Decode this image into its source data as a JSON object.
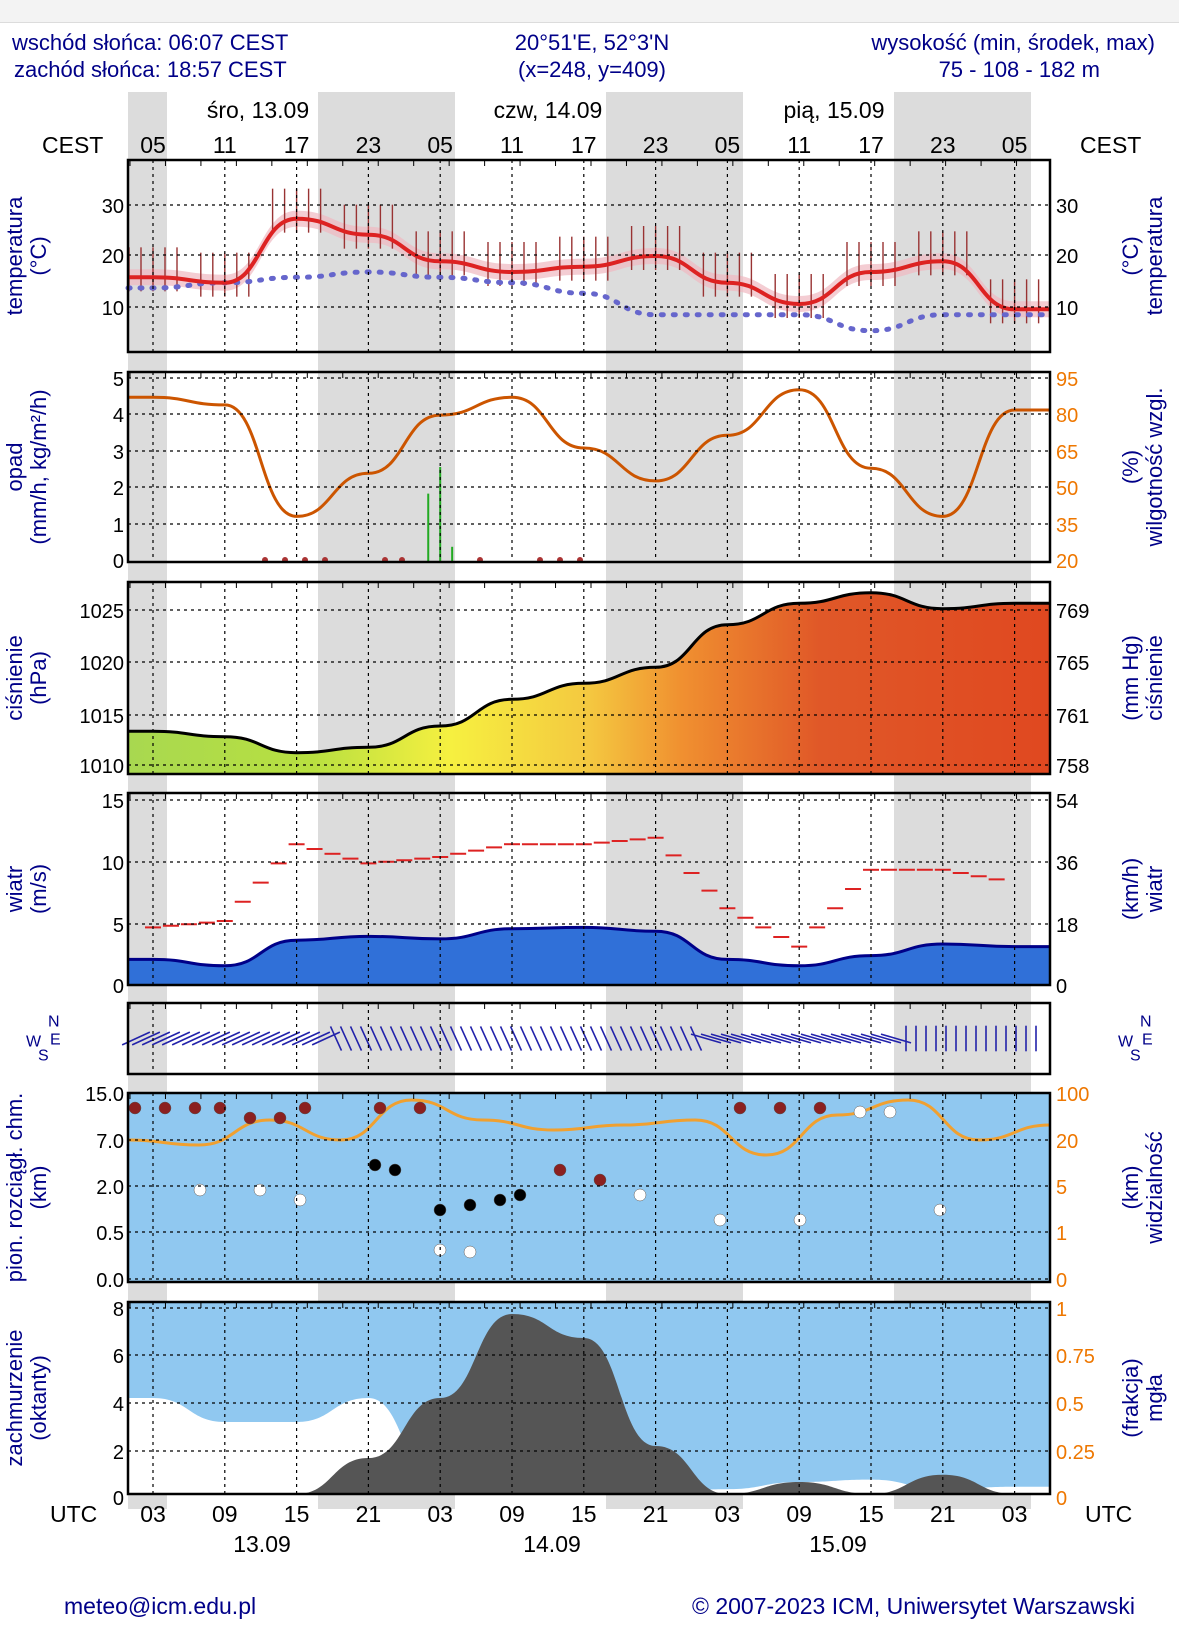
{
  "header": {
    "sunrise": "wschód słońca: 06:07 CEST",
    "sunset": "zachód słońca: 18:57 CEST",
    "coords": "20°51'E, 52°3'N",
    "grid": "(x=248, y=409)",
    "height_label": "wysokość (min, środek, max)",
    "height_values": "75 - 108 - 182 m"
  },
  "time_axis": {
    "top_label": "CEST",
    "top_label_right": "CEST",
    "bottom_label": "UTC",
    "bottom_label_right": "UTC",
    "days_top": [
      "śro, 13.09",
      "czw, 14.09",
      "pią, 15.09"
    ],
    "days_bottom": [
      "13.09",
      "14.09",
      "15.09"
    ],
    "cest_ticks": [
      "05",
      "11",
      "17",
      "23",
      "05",
      "11",
      "17",
      "23",
      "05",
      "11",
      "17",
      "23",
      "05"
    ],
    "utc_ticks": [
      "03",
      "09",
      "15",
      "21",
      "03",
      "09",
      "15",
      "21",
      "03",
      "09",
      "15",
      "21",
      "03"
    ]
  },
  "panels": {
    "temperature": {
      "left_label_1": "temperatura",
      "left_label_2": "(°C)",
      "right_label_1": "(°C)",
      "right_label_2": "temperatura",
      "ticks": [
        "30",
        "20",
        "10"
      ]
    },
    "precip": {
      "left_label_1": "opad",
      "left_label_2": "(mm/h, kg/m²/h)",
      "right_label_1": "(%)",
      "right_label_2": "wilgotność wzgl.",
      "ticks_left": [
        "5",
        "4",
        "3",
        "2",
        "1",
        "0"
      ],
      "ticks_right": [
        "95",
        "80",
        "65",
        "50",
        "35",
        "20"
      ]
    },
    "pressure": {
      "left_label_1": "ciśnienie",
      "left_label_2": "(hPa)",
      "right_label_1": "(mm Hg)",
      "right_label_2": "ciśnienie",
      "ticks_left": [
        "1025",
        "1020",
        "1015",
        "1010"
      ],
      "ticks_right": [
        "769",
        "765",
        "761",
        "758"
      ]
    },
    "wind": {
      "left_label_1": "wiatr",
      "left_label_2": "(m/s)",
      "right_label_1": "(km/h)",
      "right_label_2": "wiatr",
      "ticks_left": [
        "15",
        "10",
        "5",
        "0"
      ],
      "ticks_right": [
        "54",
        "36",
        "18",
        "0"
      ]
    },
    "winddir": {
      "compass_n": "N",
      "compass_s": "S",
      "compass_e": "E",
      "compass_w": "W"
    },
    "cloudbase": {
      "left_label_1": "pion. rozciągł. chm.",
      "left_label_2": "(km)",
      "right_label_1": "(km)",
      "right_label_2": "widzialność",
      "ticks_left": [
        "15.0",
        "7.0",
        "2.0",
        "0.5",
        "0.0"
      ],
      "ticks_right": [
        "100",
        "20",
        "5",
        "1",
        "0"
      ]
    },
    "cloudcover": {
      "left_label_1": "zachmurzenie",
      "left_label_2": "(oktanty)",
      "right_label_1": "(frakcja)",
      "right_label_2": "mgła",
      "ticks_left": [
        "8",
        "6",
        "4",
        "2",
        "0"
      ],
      "ticks_right": [
        "1",
        "0.75",
        "0.5",
        "0.25",
        "0"
      ]
    }
  },
  "footer": {
    "email": "meteo@icm.edu.pl",
    "copyright": "© 2007-2023 ICM, Uniwersytet Warszawski"
  },
  "colors": {
    "label_blue": "#000088",
    "orange": "#cc5500",
    "temp_red": "#dd2222",
    "dew_blue": "#4444cc",
    "night_gray": "#dcdcdc",
    "sky_blue": "#90c8f0"
  },
  "chart_data": [
    {
      "type": "line",
      "panel": "temperature",
      "x_hours_utc": [
        0,
        6,
        12,
        18,
        24,
        30,
        36,
        42,
        48,
        54,
        60,
        66,
        72
      ],
      "series": [
        {
          "values": [
            16,
            15,
            27,
            24,
            19,
            17,
            18,
            20,
            15,
            11,
            17,
            19,
            10
          ]
        },
        {
          "values": [
            14,
            15,
            16,
            17,
            16,
            15,
            13,
            9,
            9,
            9,
            6,
            9,
            9
          ]
        }
      ],
      "ylim": [
        2,
        38
      ]
    },
    {
      "type": "line",
      "panel": "humidity",
      "x_hours_utc": [
        0,
        6,
        12,
        18,
        24,
        30,
        36,
        42,
        48,
        54,
        60,
        66,
        72
      ],
      "series": [
        {
          "values": [
            85,
            82,
            38,
            55,
            78,
            85,
            65,
            52,
            70,
            88,
            57,
            38,
            80
          ]
        }
      ],
      "ylim": [
        20,
        95
      ]
    },
    {
      "type": "bar",
      "panel": "precip",
      "x_hours_utc": [
        23,
        24,
        25
      ],
      "values": [
        1.8,
        2.5,
        0.4
      ],
      "ylim": [
        0,
        5
      ]
    },
    {
      "type": "area",
      "panel": "pressure",
      "x_hours_utc": [
        0,
        6,
        12,
        18,
        24,
        30,
        36,
        42,
        48,
        54,
        60,
        66,
        72
      ],
      "values": [
        1013,
        1012.5,
        1011,
        1011.5,
        1013.5,
        1016,
        1017.5,
        1019,
        1023,
        1025,
        1026,
        1024.5,
        1025
      ],
      "ylim": [
        1009,
        1027
      ]
    },
    {
      "type": "area",
      "panel": "wind",
      "x_hours_utc": [
        0,
        6,
        12,
        18,
        24,
        30,
        36,
        42,
        48,
        54,
        60,
        66,
        72
      ],
      "series": [
        {
          "values": [
            2,
            1.5,
            3.5,
            3.8,
            3.6,
            4.4,
            4.5,
            4.2,
            2,
            1.5,
            2.3,
            3.2,
            3
          ]
        },
        {
          "values": [
            4.5,
            5,
            11,
            9.5,
            10,
            11,
            11,
            11.5,
            6,
            3,
            9,
            9,
            8
          ]
        }
      ],
      "ylim": [
        0,
        15
      ]
    },
    {
      "type": "area",
      "panel": "cloudcover",
      "x_hours_utc": [
        0,
        6,
        12,
        18,
        24,
        30,
        36,
        42,
        48,
        54,
        60,
        66,
        72
      ],
      "series": [
        {
          "values": [
            0,
            0,
            0,
            1.5,
            4,
            7.5,
            6.5,
            2,
            0,
            0.5,
            0,
            0.8,
            0
          ]
        },
        {
          "values": [
            4,
            3,
            3,
            4,
            0.3,
            0,
            0.1,
            0.1,
            0.2,
            0.5,
            0.6,
            0.2,
            0.3
          ]
        }
      ],
      "ylim": [
        0,
        8
      ]
    }
  ]
}
